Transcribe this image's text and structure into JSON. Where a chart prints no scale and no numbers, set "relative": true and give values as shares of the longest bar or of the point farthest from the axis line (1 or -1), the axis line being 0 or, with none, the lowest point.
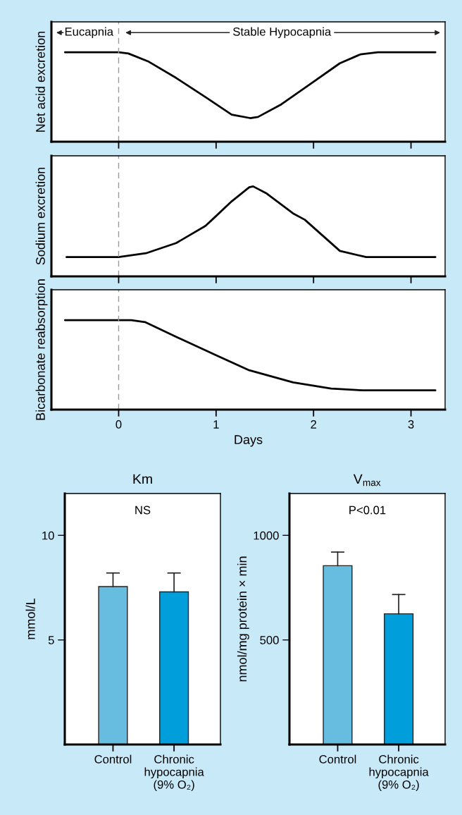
{
  "chart_data": [
    {
      "type": "line",
      "ylabel": "Net acid excretion",
      "relative": true,
      "xlim": [
        -0.69,
        3.35
      ],
      "xticks": [
        {
          "value": 0,
          "label": null
        },
        {
          "value": 1,
          "label": null
        },
        {
          "value": 2,
          "label": null
        },
        {
          "value": 3,
          "label": null
        }
      ],
      "tick_labels": false,
      "grid": false,
      "marker": "none",
      "line_style": "solid",
      "annotations": [
        "Eucapnia",
        "Stable Hypocapnia"
      ],
      "ref_lines": [
        {
          "axis": "x",
          "value": 0,
          "label": null,
          "color": "#999999",
          "line_style": "dashed"
        }
      ],
      "series": [
        {
          "color": "#000000",
          "x": [
            -0.55,
            0,
            0.1,
            0.31,
            0.59,
            0.89,
            1.16,
            1.35,
            1.43,
            1.67,
            1.97,
            2.27,
            2.48,
            2.66,
            3.25
          ],
          "values": [
            1,
            1,
            0.986,
            0.894,
            0.713,
            0.5,
            0.303,
            0.264,
            0.277,
            0.418,
            0.648,
            0.877,
            0.976,
            1,
            1
          ]
        }
      ]
    },
    {
      "type": "line",
      "ylabel": "Sodium excretion",
      "relative": true,
      "xlim": [
        -0.69,
        3.35
      ],
      "xticks": [
        {
          "value": 0,
          "label": null
        },
        {
          "value": 1,
          "label": null
        },
        {
          "value": 2,
          "label": null
        },
        {
          "value": 3,
          "label": null
        }
      ],
      "tick_labels": false,
      "grid": false,
      "marker": "none",
      "line_style": "solid",
      "ref_lines": [
        {
          "axis": "x",
          "value": 0,
          "label": null,
          "color": "#999999",
          "line_style": "dashed"
        }
      ],
      "series": [
        {
          "color": "#000000",
          "x": [
            -0.535,
            0,
            0.28,
            0.59,
            0.89,
            0.95,
            1.16,
            1.34,
            1.38,
            1.52,
            1.79,
            1.91,
            2.27,
            2.54,
            3.25
          ],
          "values": [
            0.214,
            0.214,
            0.257,
            0.37,
            0.56,
            0.62,
            0.834,
            0.99,
            1,
            0.92,
            0.7,
            0.63,
            0.283,
            0.214,
            0.214
          ]
        }
      ]
    },
    {
      "type": "line",
      "ylabel": "Bicarbonate reabsorption",
      "xlabel": "Days",
      "relative": true,
      "xlim": [
        -0.69,
        3.35
      ],
      "xticks": [
        0,
        1,
        2,
        3
      ],
      "tick_labels": "x",
      "grid": false,
      "marker": "none",
      "line_style": "solid",
      "ref_lines": [
        {
          "axis": "x",
          "value": 0,
          "label": null,
          "color": "#999999",
          "line_style": "dashed"
        }
      ],
      "series": [
        {
          "color": "#000000",
          "x": [
            -0.55,
            0,
            0.13,
            0.27,
            0.59,
            1.01,
            1.34,
            1.79,
            2.18,
            2.51,
            3.25
          ],
          "values": [
            1,
            1,
            1,
            0.979,
            0.814,
            0.603,
            0.44,
            0.305,
            0.236,
            0.215,
            0.215
          ]
        }
      ]
    },
    {
      "type": "bar",
      "title": "Km",
      "ylabel": "mmol/L",
      "annotations": [
        "NS"
      ],
      "categories": [
        "Control",
        "Chronic\nhypocapnia\n(9% O₂)"
      ],
      "values": [
        7.55,
        7.3
      ],
      "colors": [
        "#66bde0",
        "#009fdb"
      ],
      "errors": [
        [
          7.55,
          8.2
        ],
        [
          7.3,
          8.2
        ]
      ],
      "ylim": [
        0,
        12
      ],
      "yticks": [
        5,
        10
      ],
      "grid": false
    },
    {
      "type": "bar",
      "title": "V$_{max}$",
      "ylabel": "nmol/mg protein × min",
      "annotations": [
        "P<0.01"
      ],
      "categories": [
        "Control",
        "Chronic\nhypocapnia\n(9% O₂)"
      ],
      "values": [
        855,
        625
      ],
      "colors": [
        "#66bde0",
        "#009fdb"
      ],
      "errors": [
        [
          855,
          920
        ],
        [
          625,
          717
        ]
      ],
      "ylim": [
        0,
        1200
      ],
      "yticks": [
        500,
        1000
      ],
      "grid": false
    }
  ]
}
